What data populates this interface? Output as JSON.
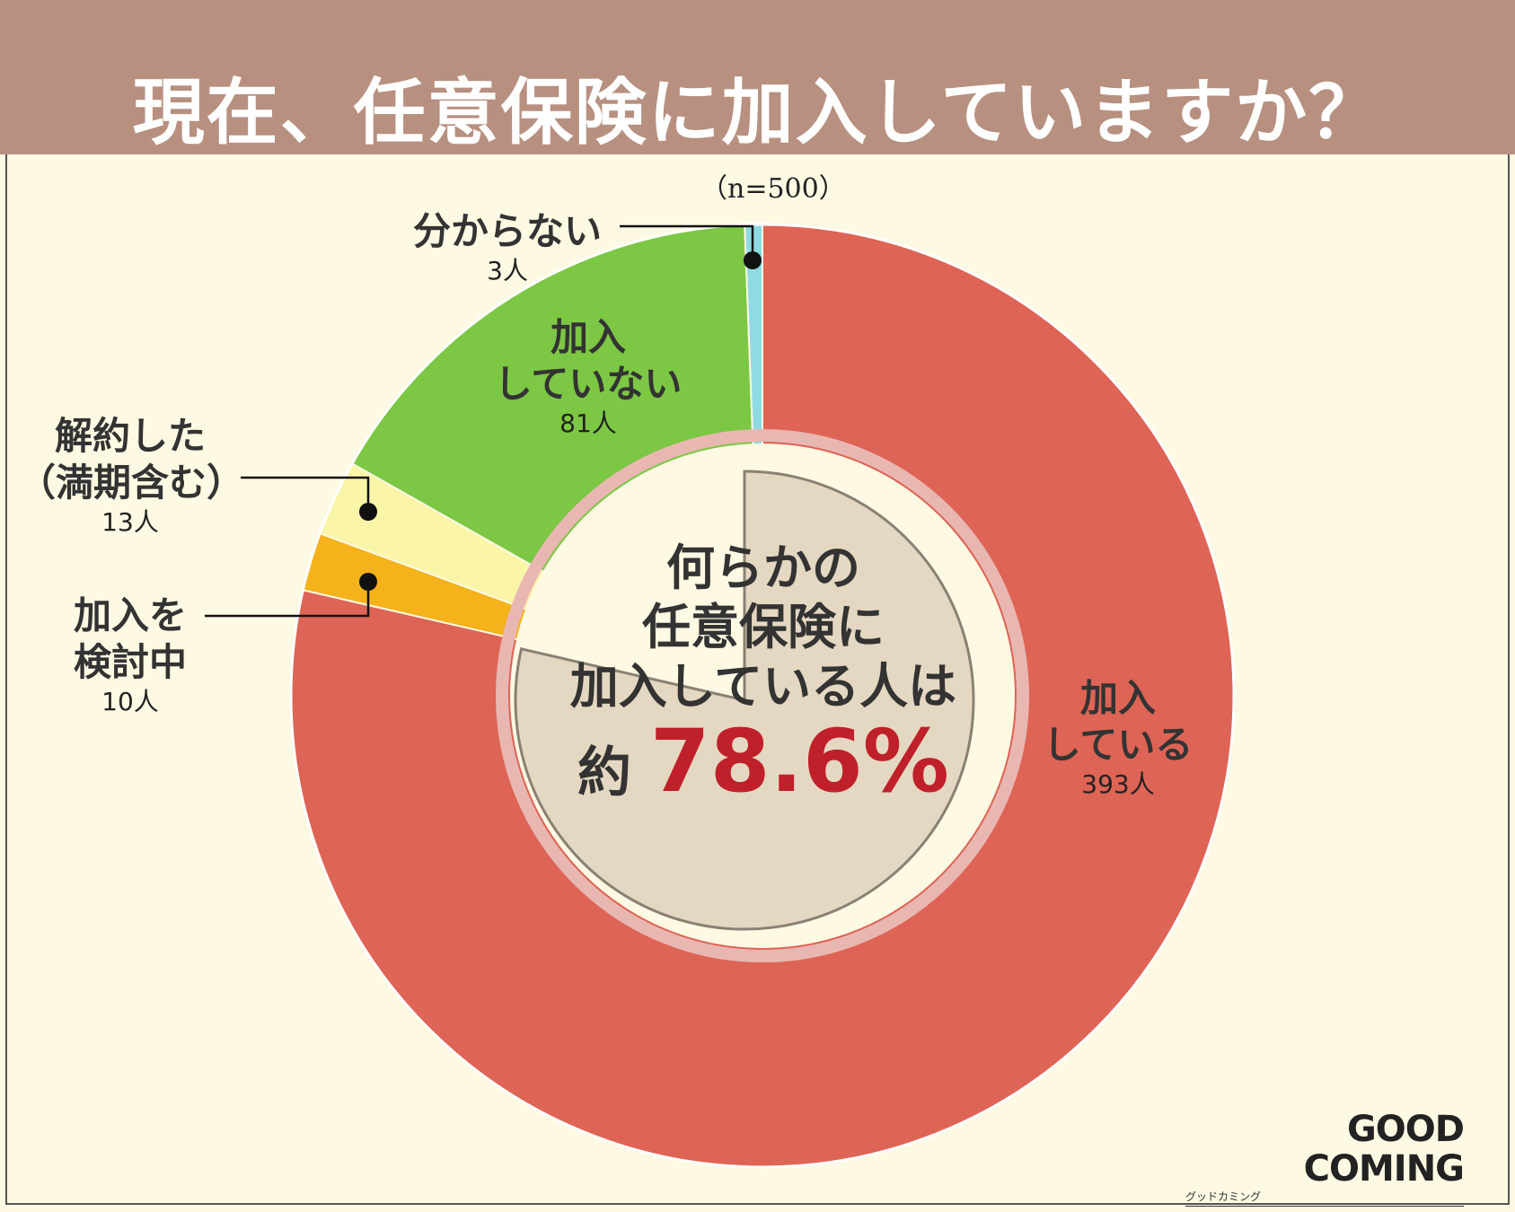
{
  "title": "現在、任意保険に加入していますか？",
  "sample_note": "（n=500）",
  "center": {
    "line1": "何らかの",
    "line2": "任意保険に",
    "line3": "加入している人は",
    "prefix": "約",
    "percent": "78.6%"
  },
  "labels": {
    "joined": {
      "line1": "加入",
      "line2": "している",
      "count": "393人"
    },
    "not_joined": {
      "line1": "加入",
      "line2": "していない",
      "count": "81人"
    },
    "unknown": {
      "line1": "分からない",
      "count": "3人"
    },
    "cancelled": {
      "line1": "解約した",
      "line2": "（満期含む）",
      "count": "13人"
    },
    "considering": {
      "line1": "加入を",
      "line2": "検討中",
      "count": "10人"
    }
  },
  "logo": {
    "main": "GOOD COMING",
    "sub": "グッドカミング"
  },
  "chart_data": {
    "type": "pie",
    "donut": true,
    "n": 500,
    "title": "現在、任意保険に加入していますか？",
    "slices": [
      {
        "label": "加入している",
        "value": 393,
        "color": "#de6455"
      },
      {
        "label": "加入を検討中",
        "value": 10,
        "color": "#f5b21a"
      },
      {
        "label": "解約した（満期含む）",
        "value": 13,
        "color": "#fbf5a8"
      },
      {
        "label": "加入していない",
        "value": 81,
        "color": "#7cc744"
      },
      {
        "label": "分からない",
        "value": 3,
        "color": "#8fdbe4"
      }
    ],
    "highlight_percent": 78.6
  },
  "colors": {
    "header": "#b89080",
    "background": "#fdf9e3",
    "accent": "#c0202a",
    "inner_fill": "#e4d8c2"
  }
}
